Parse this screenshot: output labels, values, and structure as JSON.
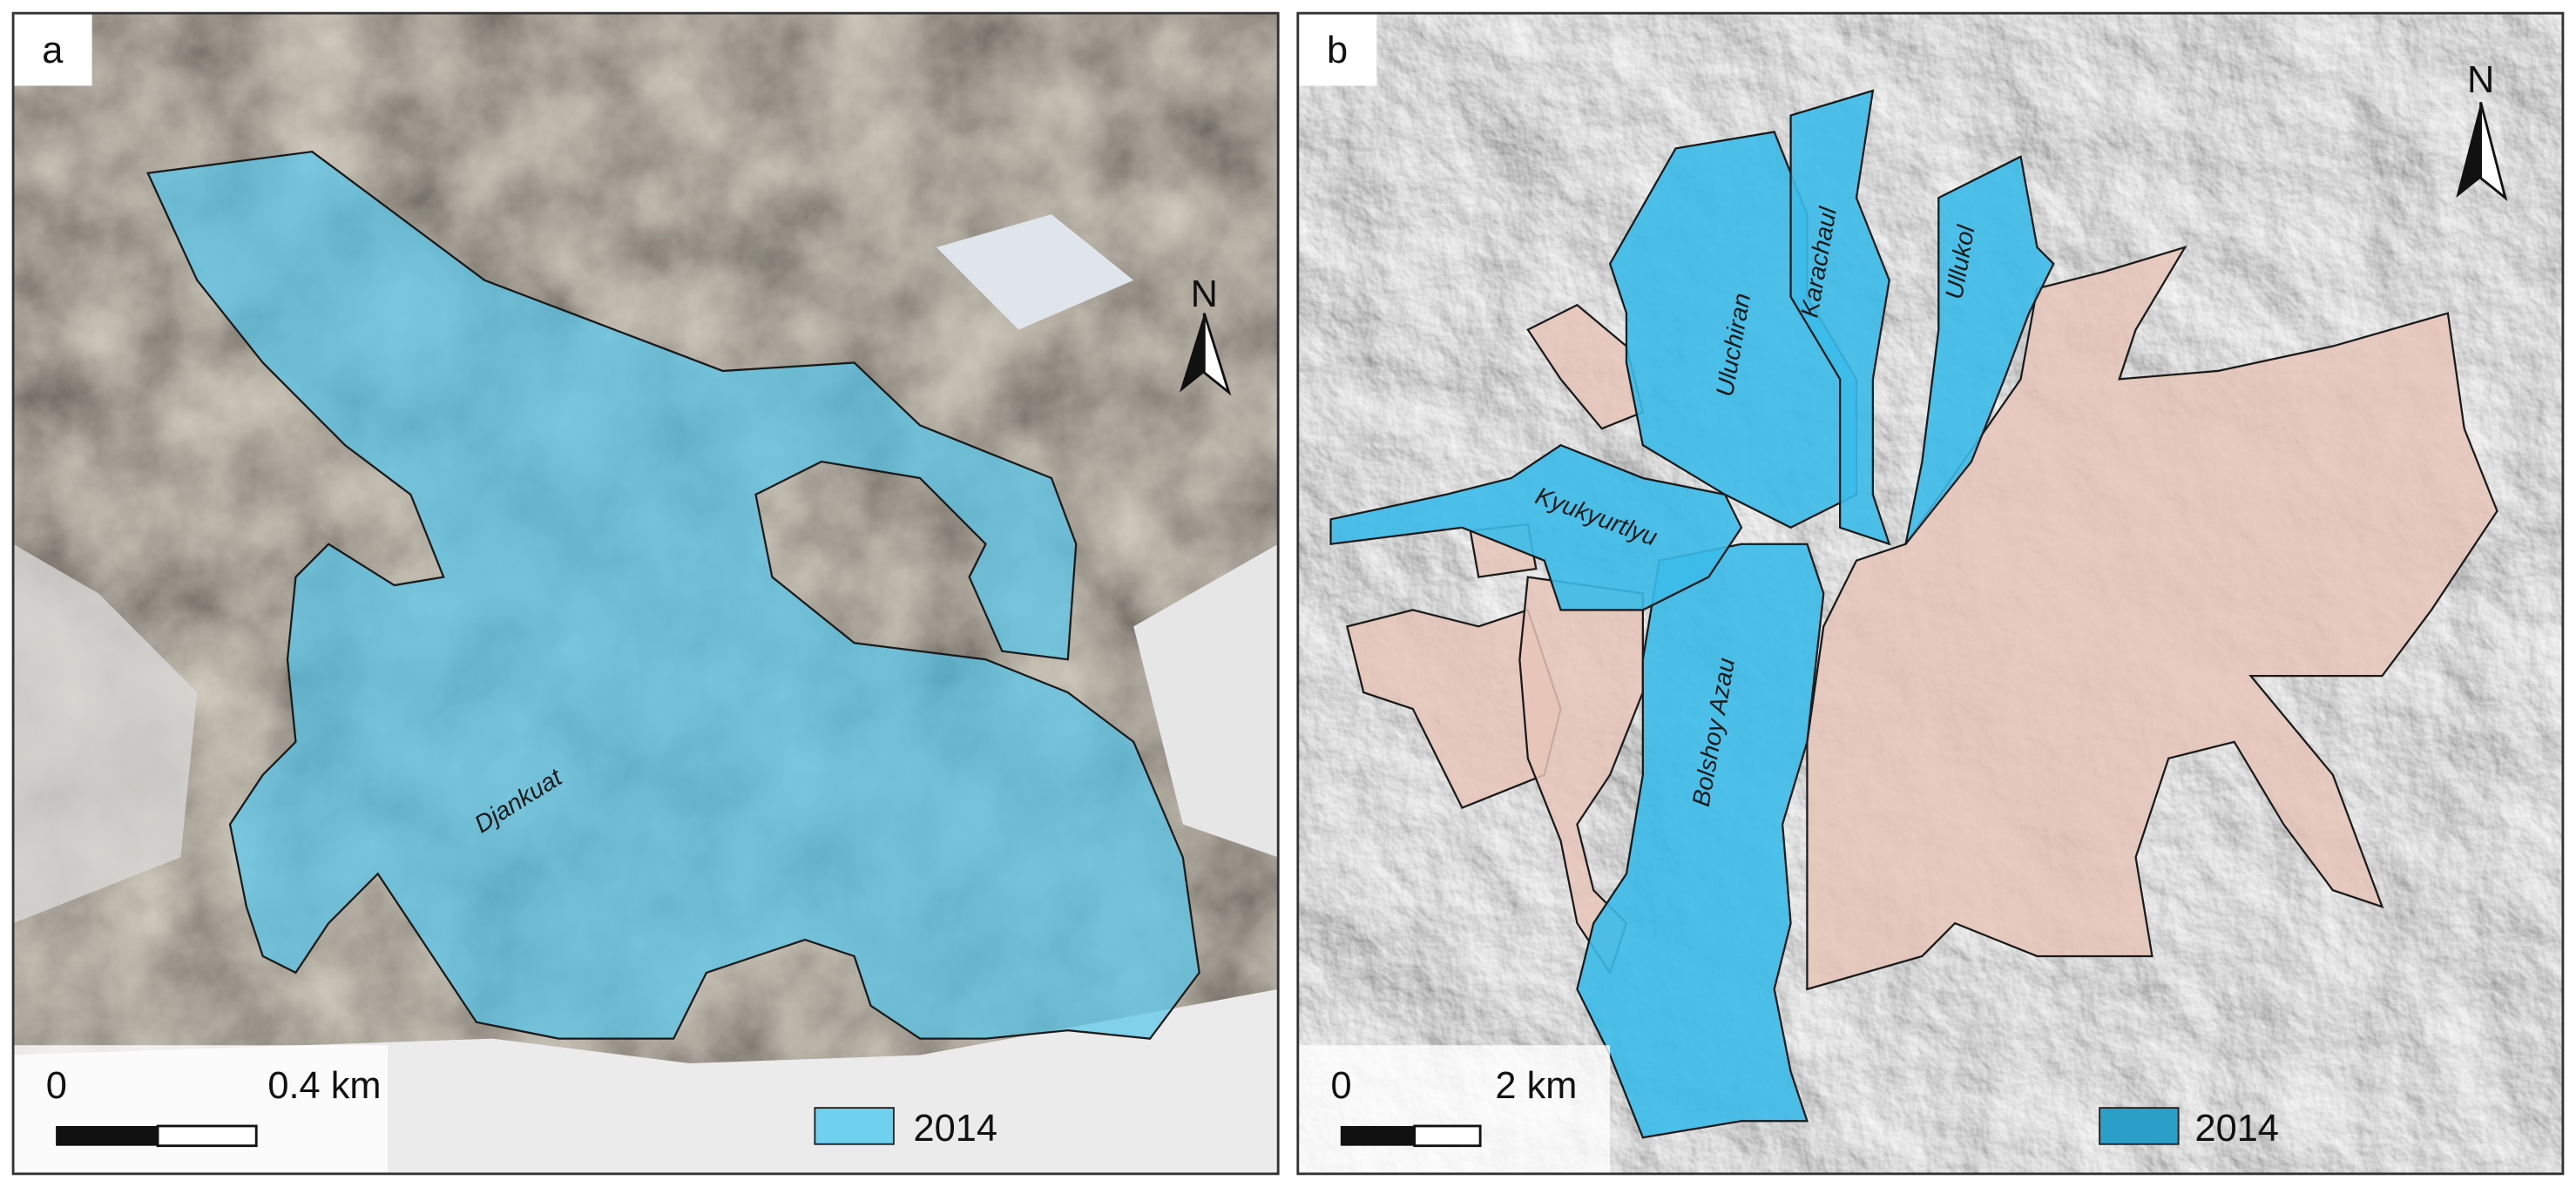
{
  "panels": [
    {
      "label": "a",
      "north": "N",
      "glaciers": [
        "Djankuat"
      ],
      "scale_bar": {
        "start": "0",
        "end": "0.4 km"
      },
      "legend": "2014"
    },
    {
      "label": "b",
      "north": "N",
      "glaciers": [
        "Uluchiran",
        "Karachaul",
        "Ullukol",
        "Kyukyurtlyu",
        "Bolshoy Azau"
      ],
      "scale_bar": {
        "start": "0",
        "end": "2 km"
      },
      "legend": "2014"
    }
  ]
}
